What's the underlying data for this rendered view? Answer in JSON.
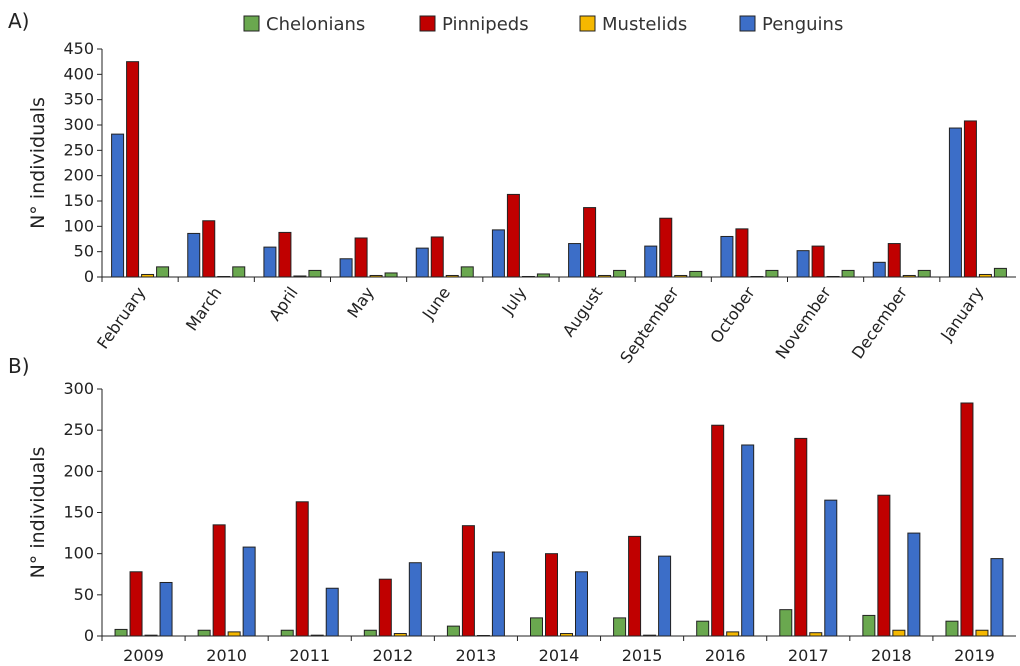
{
  "legend": [
    {
      "name": "Chelonians",
      "color": "#6aa84f"
    },
    {
      "name": "Pinnipeds",
      "color": "#c00000"
    },
    {
      "name": "Mustelids",
      "color": "#f5b800"
    },
    {
      "name": "Penguins",
      "color": "#3c6ec8"
    }
  ],
  "chart_data": [
    {
      "panel_label": "A)",
      "type": "bar",
      "title": "",
      "xlabel": "",
      "ylabel": "N° individuals",
      "ylim": [
        0,
        450
      ],
      "yticks": [
        0,
        50,
        100,
        150,
        200,
        250,
        300,
        350,
        400,
        450
      ],
      "grid": false,
      "categories": [
        "February",
        "March",
        "April",
        "May",
        "June",
        "July",
        "August",
        "September",
        "October",
        "November",
        "December",
        "January"
      ],
      "series_order": [
        "Penguins",
        "Pinnipeds",
        "Mustelids",
        "Chelonians"
      ],
      "series": [
        {
          "name": "Chelonians",
          "values": [
            20,
            20,
            13,
            8,
            20,
            6,
            13,
            11,
            13,
            13,
            13,
            17
          ]
        },
        {
          "name": "Pinnipeds",
          "values": [
            425,
            111,
            88,
            77,
            79,
            163,
            137,
            116,
            95,
            61,
            66,
            308
          ]
        },
        {
          "name": "Mustelids",
          "values": [
            5,
            0,
            2,
            3,
            3,
            1,
            3,
            3,
            1,
            1,
            3,
            5
          ]
        },
        {
          "name": "Penguins",
          "values": [
            282,
            86,
            59,
            36,
            57,
            93,
            66,
            61,
            80,
            52,
            29,
            294
          ]
        }
      ]
    },
    {
      "panel_label": "B)",
      "type": "bar",
      "title": "",
      "xlabel": "",
      "ylabel": "N° individuals",
      "ylim": [
        0,
        300
      ],
      "yticks": [
        0,
        50,
        100,
        150,
        200,
        250,
        300
      ],
      "grid": false,
      "categories": [
        "2009",
        "2010",
        "2011",
        "2012",
        "2013",
        "2014",
        "2015",
        "2016",
        "2017",
        "2018",
        "2019"
      ],
      "series_order": [
        "Chelonians",
        "Pinnipeds",
        "Mustelids",
        "Penguins"
      ],
      "series": [
        {
          "name": "Chelonians",
          "values": [
            8,
            7,
            7,
            7,
            12,
            22,
            22,
            18,
            32,
            25,
            18
          ]
        },
        {
          "name": "Pinnipeds",
          "values": [
            78,
            135,
            163,
            69,
            134,
            100,
            121,
            256,
            240,
            171,
            283
          ]
        },
        {
          "name": "Mustelids",
          "values": [
            1,
            5,
            1,
            3,
            0,
            3,
            1,
            5,
            4,
            7,
            7
          ]
        },
        {
          "name": "Penguins",
          "values": [
            65,
            108,
            58,
            89,
            102,
            78,
            97,
            232,
            165,
            125,
            94
          ]
        }
      ]
    }
  ]
}
